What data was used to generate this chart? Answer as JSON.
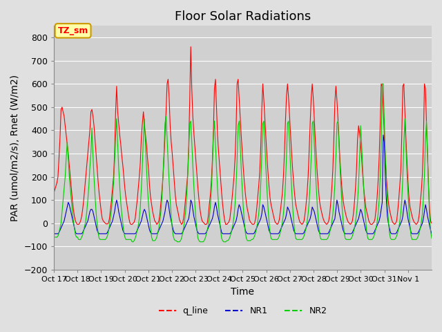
{
  "title": "Floor Solar Radiations",
  "xlabel": "Time",
  "ylabel": "PAR (umol/m2/s), Rnet (W/m2)",
  "ylim": [
    -200,
    850
  ],
  "yticks": [
    -200,
    -100,
    0,
    100,
    200,
    300,
    400,
    500,
    600,
    700,
    800
  ],
  "xtick_labels": [
    "Oct 17",
    "Oct 18",
    "Oct 19",
    "Oct 20",
    "Oct 21",
    "Oct 22",
    "Oct 23",
    "Oct 24",
    "Oct 25",
    "Oct 26",
    "Oct 27",
    "Oct 28",
    "Oct 29",
    "Oct 30",
    "Oct 31",
    "Nov 1"
  ],
  "legend_labels": [
    "q_line",
    "NR1",
    "NR2"
  ],
  "legend_colors": [
    "#ff0000",
    "#0000cc",
    "#00cc00"
  ],
  "line_colors": [
    "#ff0000",
    "#0000cc",
    "#00cc00"
  ],
  "annotation_text": "TZ_sm",
  "annotation_bg": "#ffffaa",
  "annotation_border": "#cc9900",
  "background_color": "#e0e0e0",
  "plot_bg": "#d0d0d0",
  "title_fontsize": 13,
  "axis_fontsize": 10,
  "tick_fontsize": 9,
  "num_days": 16,
  "q_line_data": [
    130,
    145,
    160,
    175,
    200,
    280,
    370,
    490,
    500,
    480,
    460,
    420,
    380,
    340,
    300,
    250,
    200,
    150,
    100,
    60,
    30,
    10,
    0,
    -5,
    -5,
    0,
    10,
    30,
    60,
    100,
    150,
    200,
    250,
    300,
    350,
    400,
    480,
    490,
    460,
    420,
    360,
    300,
    240,
    180,
    130,
    90,
    50,
    20,
    10,
    5,
    0,
    -3,
    -3,
    0,
    20,
    60,
    100,
    150,
    200,
    300,
    480,
    590,
    480,
    430,
    380,
    340,
    290,
    250,
    200,
    150,
    110,
    80,
    50,
    20,
    0,
    -5,
    -5,
    0,
    5,
    20,
    60,
    100,
    150,
    200,
    260,
    370,
    430,
    480,
    420,
    380,
    340,
    280,
    230,
    160,
    110,
    80,
    50,
    30,
    10,
    5,
    -5,
    0,
    10,
    40,
    90,
    140,
    200,
    280,
    380,
    480,
    600,
    620,
    540,
    420,
    350,
    300,
    240,
    180,
    120,
    80,
    60,
    40,
    15,
    5,
    -5,
    0,
    20,
    60,
    110,
    160,
    210,
    330,
    530,
    760,
    580,
    460,
    390,
    330,
    270,
    210,
    150,
    100,
    60,
    30,
    10,
    5,
    0,
    -5,
    -5,
    0,
    30,
    80,
    120,
    180,
    270,
    390,
    580,
    620,
    500,
    380,
    310,
    250,
    190,
    130,
    80,
    40,
    10,
    -5,
    -5,
    0,
    5,
    20,
    60,
    100,
    150,
    200,
    280,
    400,
    600,
    620,
    540,
    460,
    380,
    310,
    240,
    180,
    130,
    90,
    60,
    40,
    15,
    5,
    0,
    -5,
    -5,
    0,
    20,
    60,
    110,
    160,
    220,
    330,
    490,
    600,
    530,
    450,
    370,
    290,
    220,
    160,
    110,
    80,
    60,
    40,
    20,
    5,
    0,
    -5,
    0,
    15,
    50,
    90,
    130,
    200,
    300,
    440,
    550,
    600,
    540,
    460,
    380,
    300,
    230,
    170,
    120,
    80,
    60,
    40,
    20,
    5,
    0,
    -5,
    0,
    10,
    40,
    80,
    130,
    200,
    310,
    430,
    540,
    600,
    540,
    450,
    360,
    280,
    210,
    150,
    100,
    70,
    50,
    30,
    15,
    5,
    0,
    -5,
    0,
    10,
    40,
    90,
    150,
    230,
    360,
    520,
    590,
    530,
    450,
    360,
    270,
    200,
    140,
    100,
    70,
    50,
    30,
    15,
    5,
    0,
    -5,
    0,
    10,
    40,
    90,
    150,
    230,
    360,
    420,
    390,
    340,
    280,
    210,
    150,
    110,
    70,
    50,
    30,
    10,
    0,
    -5,
    -5,
    0,
    5,
    20,
    60,
    110,
    180,
    280,
    420,
    600,
    590,
    490,
    380,
    290,
    200,
    140,
    90,
    60,
    40,
    20,
    5,
    0,
    -5,
    0,
    10,
    50,
    100,
    160,
    220,
    380,
    590,
    600,
    480,
    370,
    270,
    180,
    110,
    70,
    50,
    30,
    15,
    5,
    0,
    -5,
    0,
    10,
    40,
    90,
    140,
    210,
    350,
    600,
    580,
    430,
    300,
    160,
    60,
    10,
    0
  ],
  "NR1_data": [
    -45,
    -45,
    -45,
    -45,
    -45,
    -40,
    -30,
    -20,
    -10,
    0,
    10,
    30,
    50,
    70,
    90,
    80,
    60,
    40,
    20,
    0,
    -20,
    -40,
    -45,
    -45,
    -45,
    -45,
    -45,
    -45,
    -40,
    -30,
    -20,
    -10,
    0,
    10,
    30,
    50,
    60,
    60,
    50,
    30,
    10,
    -10,
    -30,
    -40,
    -45,
    -45,
    -45,
    -45,
    -45,
    -45,
    -45,
    -45,
    -40,
    -30,
    -20,
    -10,
    0,
    10,
    30,
    50,
    80,
    100,
    80,
    50,
    30,
    10,
    -10,
    -30,
    -40,
    -45,
    -45,
    -45,
    -45,
    -45,
    -45,
    -45,
    -45,
    -45,
    -45,
    -45,
    -40,
    -30,
    -20,
    -10,
    0,
    10,
    30,
    50,
    60,
    50,
    30,
    10,
    -10,
    -30,
    -40,
    -45,
    -45,
    -45,
    -45,
    -45,
    -45,
    -40,
    -30,
    -20,
    -10,
    0,
    10,
    30,
    50,
    80,
    100,
    90,
    60,
    30,
    10,
    -10,
    -30,
    -40,
    -45,
    -45,
    -45,
    -45,
    -45,
    -45,
    -45,
    -40,
    -30,
    -20,
    -10,
    0,
    10,
    20,
    50,
    100,
    90,
    60,
    30,
    10,
    -10,
    -30,
    -40,
    -45,
    -45,
    -45,
    -45,
    -45,
    -45,
    -45,
    -40,
    -30,
    -20,
    -10,
    0,
    10,
    20,
    40,
    70,
    90,
    70,
    40,
    20,
    0,
    -20,
    -40,
    -45,
    -45,
    -45,
    -45,
    -45,
    -45,
    -45,
    -45,
    -40,
    -30,
    -20,
    -10,
    0,
    10,
    30,
    60,
    80,
    70,
    50,
    30,
    10,
    -10,
    -30,
    -40,
    -45,
    -45,
    -45,
    -45,
    -45,
    -45,
    -45,
    -40,
    -30,
    -20,
    -10,
    0,
    10,
    20,
    40,
    80,
    70,
    50,
    30,
    10,
    -10,
    -30,
    -40,
    -45,
    -45,
    -45,
    -45,
    -45,
    -45,
    -45,
    -45,
    -40,
    -30,
    -20,
    -10,
    0,
    10,
    20,
    40,
    70,
    60,
    50,
    30,
    10,
    -10,
    -30,
    -40,
    -45,
    -45,
    -45,
    -45,
    -45,
    -45,
    -45,
    -45,
    -40,
    -30,
    -20,
    -10,
    0,
    10,
    20,
    40,
    70,
    60,
    50,
    30,
    10,
    -10,
    -30,
    -40,
    -45,
    -45,
    -45,
    -45,
    -45,
    -45,
    -45,
    -45,
    -40,
    -30,
    -20,
    -10,
    0,
    10,
    20,
    60,
    100,
    80,
    50,
    30,
    10,
    -10,
    -30,
    -40,
    -45,
    -45,
    -45,
    -45,
    -45,
    -45,
    -45,
    -40,
    -30,
    -20,
    -10,
    0,
    10,
    20,
    40,
    60,
    50,
    30,
    10,
    -10,
    -30,
    -40,
    -45,
    -45,
    -45,
    -45,
    -45,
    -45,
    -40,
    -30,
    -20,
    -10,
    0,
    10,
    30,
    60,
    90,
    380,
    350,
    200,
    100,
    30,
    0,
    -20,
    -40,
    -45,
    -45,
    -45,
    -45,
    -45,
    -40,
    -30,
    -20,
    -10,
    0,
    10,
    30,
    70,
    100,
    80,
    50,
    20,
    0,
    -20,
    -40,
    -45,
    -45,
    -45,
    -45,
    -45,
    -45,
    -40,
    -30,
    -20,
    -10,
    0,
    20,
    50,
    80,
    60,
    30,
    10,
    -10,
    -30,
    -45
  ],
  "NR2_data": [
    -60,
    -60,
    -60,
    -60,
    -55,
    -40,
    -20,
    0,
    50,
    100,
    150,
    200,
    280,
    350,
    280,
    200,
    150,
    100,
    50,
    10,
    -20,
    -50,
    -60,
    -60,
    -70,
    -70,
    -70,
    -60,
    -50,
    -30,
    -10,
    10,
    50,
    100,
    160,
    240,
    300,
    410,
    290,
    200,
    120,
    50,
    0,
    -40,
    -65,
    -70,
    -70,
    -70,
    -70,
    -70,
    -70,
    -65,
    -55,
    -35,
    -10,
    20,
    60,
    110,
    170,
    260,
    370,
    450,
    340,
    240,
    160,
    90,
    40,
    0,
    -40,
    -60,
    -70,
    -70,
    -70,
    -70,
    -70,
    -70,
    -80,
    -80,
    -75,
    -65,
    -50,
    -30,
    -10,
    20,
    70,
    150,
    250,
    370,
    450,
    340,
    240,
    150,
    80,
    30,
    -20,
    -60,
    -75,
    -75,
    -75,
    -70,
    -60,
    -40,
    -20,
    10,
    50,
    110,
    200,
    310,
    430,
    460,
    370,
    270,
    180,
    100,
    30,
    -20,
    -55,
    -70,
    -75,
    -75,
    -80,
    -80,
    -80,
    -75,
    -65,
    -45,
    -20,
    10,
    50,
    110,
    200,
    310,
    430,
    440,
    350,
    250,
    160,
    80,
    20,
    -30,
    -65,
    -75,
    -80,
    -80,
    -80,
    -80,
    -75,
    -65,
    -50,
    -30,
    -10,
    20,
    70,
    140,
    240,
    380,
    440,
    340,
    240,
    150,
    80,
    20,
    -30,
    -65,
    -75,
    -80,
    -80,
    -80,
    -75,
    -75,
    -70,
    -60,
    -45,
    -25,
    -5,
    30,
    80,
    160,
    270,
    420,
    440,
    340,
    240,
    150,
    70,
    10,
    -40,
    -65,
    -75,
    -75,
    -75,
    -75,
    -70,
    -70,
    -65,
    -55,
    -40,
    -20,
    5,
    40,
    90,
    170,
    290,
    430,
    440,
    340,
    240,
    150,
    70,
    10,
    -40,
    -65,
    -70,
    -70,
    -70,
    -70,
    -70,
    -70,
    -65,
    -55,
    -40,
    -20,
    5,
    40,
    90,
    170,
    290,
    430,
    440,
    340,
    240,
    150,
    70,
    10,
    -40,
    -65,
    -70,
    -70,
    -70,
    -70,
    -70,
    -70,
    -65,
    -55,
    -40,
    -20,
    5,
    40,
    90,
    170,
    290,
    430,
    440,
    340,
    240,
    150,
    70,
    10,
    -40,
    -65,
    -70,
    -70,
    -70,
    -70,
    -70,
    -70,
    -65,
    -55,
    -40,
    -20,
    5,
    40,
    90,
    170,
    290,
    430,
    440,
    340,
    240,
    150,
    70,
    10,
    -40,
    -65,
    -70,
    -70,
    -70,
    -70,
    -70,
    -65,
    -55,
    -40,
    -20,
    5,
    40,
    90,
    170,
    280,
    420,
    340,
    240,
    150,
    70,
    10,
    -40,
    -65,
    -70,
    -70,
    -70,
    -70,
    -65,
    -55,
    -40,
    -20,
    5,
    40,
    100,
    200,
    330,
    600,
    600,
    440,
    300,
    180,
    80,
    10,
    -40,
    -65,
    -70,
    -70,
    -70,
    -70,
    -65,
    -55,
    -40,
    -20,
    5,
    40,
    100,
    200,
    340,
    450,
    330,
    220,
    130,
    50,
    -10,
    -55,
    -70,
    -70,
    -70,
    -70,
    -70,
    -65,
    -55,
    -40,
    -20,
    5,
    40,
    110,
    210,
    360,
    440,
    290,
    150,
    30,
    -30,
    -65
  ]
}
